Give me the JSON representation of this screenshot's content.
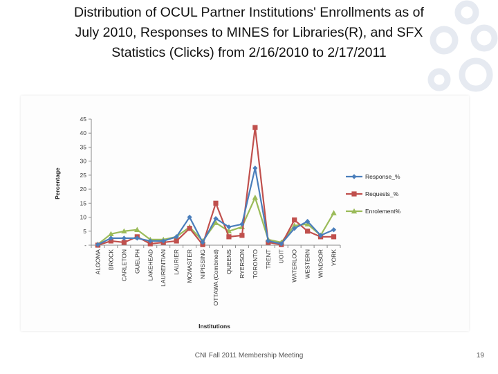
{
  "slide": {
    "title_line1": "Distribution of OCUL Partner Institutions' Enrollments as of",
    "title_line2": "July 2010, Responses to MINES for Libraries(R), and SFX",
    "title_line3": "Statistics (Clicks) from 2/16/2010 to 2/17/2011",
    "footer": "CNI Fall 2011 Membership Meeting",
    "page_number": "19"
  },
  "chart_data": {
    "type": "line",
    "title": "",
    "xlabel": "Institutions",
    "ylabel": "Percentage",
    "ylim": [
      0,
      45
    ],
    "yticks": [
      "-",
      "5",
      "10",
      "15",
      "20",
      "25",
      "30",
      "35",
      "40",
      "45"
    ],
    "grid": false,
    "legend_position": "right",
    "categories": [
      "ALGOMA",
      "BROCK",
      "CARLETON",
      "GUELPH",
      "LAKEHEAD",
      "LAURENTIAN",
      "LAURIER",
      "MCMASTER",
      "NIPISSING",
      "OTTAWA (Combined)",
      "QUEENS",
      "RYERSON",
      "TORONTO",
      "TRENT",
      "UOIT",
      "WATERLOO",
      "WESTERN",
      "WINDSOR",
      "YORK"
    ],
    "series": [
      {
        "name": "Response_%",
        "color": "#4a7ebb",
        "marker": "diamond",
        "values": [
          0.2,
          2.5,
          2.5,
          2.5,
          1.5,
          1.5,
          3,
          10,
          1,
          9.5,
          6.5,
          7.5,
          27.5,
          1.5,
          0.5,
          6,
          8.5,
          3.5,
          5.5
        ]
      },
      {
        "name": "Requests_%",
        "color": "#c0504d",
        "marker": "square",
        "values": [
          0,
          1.5,
          1,
          3,
          0.5,
          1,
          1.5,
          6,
          0.2,
          15,
          3,
          3.5,
          42,
          1,
          0.2,
          9,
          5,
          3,
          3
        ]
      },
      {
        "name": "Enrolement%",
        "color": "#9bbb59",
        "marker": "triangle",
        "values": [
          0.3,
          4,
          5,
          5.5,
          2,
          2,
          3,
          6.5,
          1.5,
          8,
          5,
          6.5,
          17,
          2,
          1,
          7,
          7.5,
          3.5,
          11.5
        ]
      }
    ]
  }
}
